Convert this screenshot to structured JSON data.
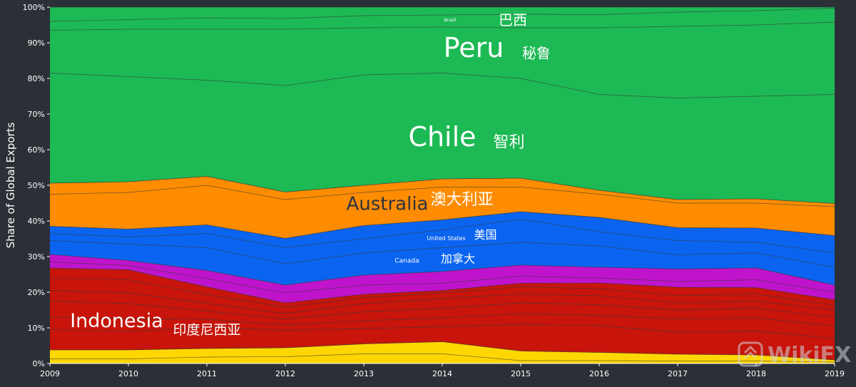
{
  "chart_data": {
    "type": "area",
    "stacked": true,
    "ylabel": "Share of Global Exports",
    "xlabel": "",
    "x": [
      2009,
      2010,
      2011,
      2012,
      2013,
      2014,
      2015,
      2016,
      2017,
      2018,
      2019
    ],
    "x_tick_labels": [
      "2009",
      "2010",
      "2011",
      "2012",
      "2013",
      "2014",
      "2015",
      "2016",
      "2017",
      "2018",
      "2019"
    ],
    "ylim": [
      0,
      100
    ],
    "y_tick_labels": [
      "0%",
      "10%",
      "20%",
      "30%",
      "40%",
      "50%",
      "60%",
      "70%",
      "80%",
      "90%",
      "100%"
    ],
    "y_ticks": [
      0,
      10,
      20,
      30,
      40,
      50,
      60,
      70,
      80,
      90,
      100
    ],
    "series": [
      {
        "key": "yellow",
        "color": "#ffd700",
        "values": [
          3.8,
          3.8,
          4.2,
          4.4,
          5.5,
          6.1,
          3.5,
          3.1,
          2.6,
          2.4,
          1.0
        ]
      },
      {
        "key": "red",
        "color": "#c8140a",
        "values": [
          23.0,
          22.5,
          17.3,
          12.6,
          13.9,
          14.4,
          19.0,
          19.5,
          18.8,
          18.9,
          16.9
        ]
      },
      {
        "key": "purple",
        "color": "#c014cc",
        "values": [
          3.8,
          2.6,
          4.6,
          5.0,
          5.4,
          5.3,
          5.1,
          4.4,
          5.1,
          5.5,
          4.1
        ]
      },
      {
        "key": "blue",
        "color": "#0a64f0",
        "values": [
          7.9,
          8.8,
          12.8,
          13.1,
          13.9,
          14.5,
          15.0,
          14.0,
          11.6,
          11.2,
          13.9
        ]
      },
      {
        "key": "orange",
        "color": "#ff8c00",
        "values": [
          12.1,
          13.3,
          13.6,
          13.0,
          11.3,
          11.5,
          9.4,
          7.6,
          7.9,
          8.2,
          9.0
        ]
      },
      {
        "key": "green",
        "color": "#1db954",
        "values": [
          49.4,
          49.0,
          47.5,
          51.9,
          50.0,
          48.2,
          48.0,
          51.4,
          54.0,
          53.8,
          55.1
        ]
      }
    ],
    "internal_line_layers": {
      "yellow": [
        [
          1.3,
          1.3,
          1.8,
          1.9,
          2.7,
          2.7,
          0.8,
          0.8,
          0.7,
          0.7,
          0.4
        ]
      ],
      "red": [
        [
          9.5,
          9.0,
          10.2,
          9.3,
          9.8,
          10.3,
          11.0,
          10.6,
          8.8,
          9.1,
          7.0
        ],
        [
          13.0,
          12.5,
          12.4,
          10.8,
          12.0,
          12.8,
          14.0,
          13.5,
          12.5,
          12.8,
          10.5
        ],
        [
          17.5,
          16.8,
          14.7,
          12.5,
          14.5,
          15.5,
          17.0,
          16.5,
          15.0,
          15.5,
          13.0
        ],
        [
          20.5,
          19.8,
          16.9,
          14.0,
          16.8,
          18.2,
          19.5,
          19.0,
          17.0,
          17.5,
          15.0
        ],
        [
          24.0,
          23.5,
          19.3,
          15.8,
          18.5,
          19.8,
          21.5,
          21.0,
          19.0,
          19.5,
          16.3
        ]
      ],
      "purple": [
        [
          28.5,
          27.5,
          23.8,
          19.8,
          22.0,
          22.5,
          24.5,
          24.0,
          23.0,
          23.5,
          20.0
        ]
      ],
      "blue": [
        [
          34.5,
          33.5,
          32.5,
          28.0,
          31.0,
          32.5,
          34.0,
          33.0,
          30.5,
          31.0,
          27.0
        ],
        [
          36.5,
          35.5,
          36.5,
          32.5,
          35.0,
          37.5,
          40.5,
          37.0,
          34.5,
          34.0,
          31.0
        ]
      ],
      "orange": [
        [
          47.5,
          48.0,
          50.0,
          46.0,
          48.0,
          49.5,
          49.5,
          47.5,
          45.0,
          45.0,
          44.0
        ]
      ],
      "green": [
        [
          81.5,
          80.5,
          79.5,
          78.0,
          81.0,
          81.5,
          80.0,
          75.5,
          74.5,
          75.0,
          75.5
        ],
        [
          93.5,
          93.8,
          93.8,
          93.8,
          94.2,
          94.4,
          94.2,
          94.2,
          94.6,
          95.0,
          95.8
        ],
        [
          96.0,
          96.5,
          97.0,
          96.8,
          97.6,
          97.8,
          98.0,
          97.9,
          98.6,
          99.0,
          99.7
        ]
      ]
    },
    "annotations": [
      {
        "key": "brazil",
        "text": "Brazil",
        "size": 6,
        "x": 2014.1,
        "y": 96.0,
        "anchor": "middle",
        "style": "light"
      },
      {
        "key": "brazil_cn",
        "text": "巴西",
        "size": 20,
        "x": 2014.9,
        "y": 95.0,
        "anchor": "middle",
        "style": "light"
      },
      {
        "key": "peru",
        "text": "Peru",
        "size": 38,
        "x": 2014.4,
        "y": 86.0,
        "anchor": "middle",
        "style": "light"
      },
      {
        "key": "peru_cn",
        "text": "秘鲁",
        "size": 20,
        "x": 2015.2,
        "y": 85.7,
        "anchor": "middle",
        "style": "light"
      },
      {
        "key": "chile",
        "text": "Chile",
        "size": 38,
        "x": 2014.0,
        "y": 61.0,
        "anchor": "middle",
        "style": "light"
      },
      {
        "key": "chile_cn",
        "text": "智利",
        "size": 22,
        "x": 2014.85,
        "y": 60.7,
        "anchor": "middle",
        "style": "light"
      },
      {
        "key": "australia",
        "text": "Australia",
        "size": 26,
        "x": 2013.3,
        "y": 43.1,
        "anchor": "middle",
        "style": "dark"
      },
      {
        "key": "australia_cn",
        "text": "澳大利亚",
        "size": 22,
        "x": 2014.25,
        "y": 44.6,
        "anchor": "middle",
        "style": "light"
      },
      {
        "key": "united_states",
        "text": "United States",
        "size": 8,
        "x": 2014.05,
        "y": 34.6,
        "anchor": "middle",
        "style": "light"
      },
      {
        "key": "united_states_cn",
        "text": "美国",
        "size": 16,
        "x": 2014.55,
        "y": 35.0,
        "anchor": "middle",
        "style": "light"
      },
      {
        "key": "canada",
        "text": "Canada",
        "size": 9,
        "x": 2013.55,
        "y": 28.3,
        "anchor": "middle",
        "style": "light"
      },
      {
        "key": "canada_cn",
        "text": "加拿大",
        "size": 16,
        "x": 2014.2,
        "y": 28.3,
        "anchor": "middle",
        "style": "light"
      },
      {
        "key": "indonesia",
        "text": "Indonesia",
        "size": 27,
        "x": 2009.85,
        "y": 10.2,
        "anchor": "middle",
        "style": "light"
      },
      {
        "key": "indonesia_cn",
        "text": "印度尼西亚",
        "size": 19,
        "x": 2011.0,
        "y": 8.2,
        "anchor": "middle",
        "style": "light"
      }
    ],
    "grid": false,
    "legend": "none"
  },
  "watermark": {
    "text": "WikiFX",
    "icon": "wikifx-logo-icon"
  }
}
